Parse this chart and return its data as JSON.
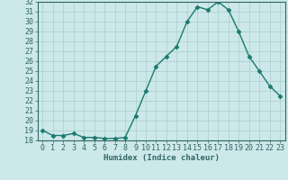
{
  "x": [
    0,
    1,
    2,
    3,
    4,
    5,
    6,
    7,
    8,
    9,
    10,
    11,
    12,
    13,
    14,
    15,
    16,
    17,
    18,
    19,
    20,
    21,
    22,
    23
  ],
  "y": [
    19.0,
    18.5,
    18.5,
    18.7,
    18.3,
    18.3,
    18.2,
    18.2,
    18.3,
    20.5,
    23.0,
    25.5,
    26.5,
    27.5,
    30.0,
    31.5,
    31.2,
    32.0,
    31.2,
    29.0,
    26.5,
    25.0,
    23.5,
    22.5
  ],
  "line_color": "#1a7a6e",
  "marker_color": "#1a7a6e",
  "bg_color": "#cce8e8",
  "grid_color": "#aacece",
  "xlabel": "Humidex (Indice chaleur)",
  "ylim": [
    18,
    32
  ],
  "xlim": [
    -0.5,
    23.5
  ],
  "yticks": [
    18,
    19,
    20,
    21,
    22,
    23,
    24,
    25,
    26,
    27,
    28,
    29,
    30,
    31,
    32
  ],
  "xticks": [
    0,
    1,
    2,
    3,
    4,
    5,
    6,
    7,
    8,
    9,
    10,
    11,
    12,
    13,
    14,
    15,
    16,
    17,
    18,
    19,
    20,
    21,
    22,
    23
  ],
  "xtick_labels": [
    "0",
    "1",
    "2",
    "3",
    "4",
    "5",
    "6",
    "7",
    "8",
    "9",
    "10",
    "11",
    "12",
    "13",
    "14",
    "15",
    "16",
    "17",
    "18",
    "19",
    "20",
    "21",
    "22",
    "23"
  ],
  "xlabel_fontsize": 6.5,
  "tick_fontsize": 6.0,
  "marker_size": 2.5,
  "line_width": 1.0
}
